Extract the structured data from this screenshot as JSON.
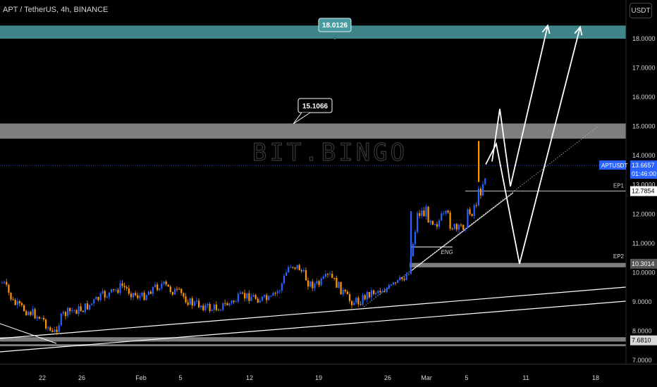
{
  "header": {
    "symbol_line": "APT / TetherUS, 4h, BINANCE"
  },
  "price_scale": {
    "unit": "USDT"
  },
  "watermark": "BIT.BINGO",
  "annotations": {
    "top_zone_label": "18.0126",
    "mid_zone_label": "15.1066",
    "ep1": "EP1",
    "ep2": "EP2",
    "eng": "ENG"
  },
  "price_tags": {
    "current_symbol": "APTUSDT",
    "current_price": "13.6657",
    "countdown": "01:46:00",
    "ep1_price": "12.7854",
    "ep2_price": "10.3014",
    "support_price": "7.6810"
  },
  "colors": {
    "background": "#000000",
    "top_zone": "#4a9ba0",
    "gray_zone": "#9e9e9e",
    "bull_candle": "#2962ff",
    "bear_candle": "#ff9800",
    "current_price_tag": "#2962ff",
    "text": "#d1d4dc"
  },
  "chart_data": {
    "type": "candlestick",
    "title": "APT / TetherUS, 4h, BINANCE",
    "y_ticks": [
      "7.0000",
      "8.0000",
      "9.0000",
      "10.0000",
      "11.0000",
      "12.0000",
      "13.0000",
      "14.0000",
      "15.0000",
      "16.0000",
      "17.0000",
      "18.0000"
    ],
    "ylim": [
      6.9,
      19.0
    ],
    "x_ticks": [
      "22",
      "26",
      "Feb",
      "5",
      "12",
      "19",
      "26",
      "Mar",
      "5",
      "11",
      "18"
    ],
    "zones": [
      {
        "from": 18.0,
        "to": 18.45
      },
      {
        "from": 14.58,
        "to": 15.1
      },
      {
        "from": 10.18,
        "to": 10.33
      },
      {
        "from": 7.48,
        "to": 7.55
      },
      {
        "from": 7.64,
        "to": 7.79
      }
    ],
    "levels": {
      "ep1": 12.7854,
      "ep2": 10.3014,
      "current": 13.6657
    },
    "price_path": [
      {
        "date": "Jan 18",
        "price": 9.65
      },
      {
        "date": "Jan 19",
        "price": 8.95
      },
      {
        "date": "Jan 20",
        "price": 8.75
      },
      {
        "date": "Jan 21",
        "price": 8.6
      },
      {
        "date": "Jan 22",
        "price": 8.4
      },
      {
        "date": "Jan 23",
        "price": 7.85
      },
      {
        "date": "Jan 24",
        "price": 8.55
      },
      {
        "date": "Jan 25",
        "price": 8.7
      },
      {
        "date": "Jan 26",
        "price": 8.75
      },
      {
        "date": "Jan 27",
        "price": 8.95
      },
      {
        "date": "Jan 28",
        "price": 9.2
      },
      {
        "date": "Jan 29",
        "price": 9.3
      },
      {
        "date": "Jan 30",
        "price": 9.55
      },
      {
        "date": "Jan 31",
        "price": 9.3
      },
      {
        "date": "Feb 1",
        "price": 9.15
      },
      {
        "date": "Feb 2",
        "price": 9.45
      },
      {
        "date": "Feb 3",
        "price": 9.6
      },
      {
        "date": "Feb 4",
        "price": 9.4
      },
      {
        "date": "Feb 5",
        "price": 9.25
      },
      {
        "date": "Feb 6",
        "price": 8.95
      },
      {
        "date": "Feb 7",
        "price": 8.9
      },
      {
        "date": "Feb 8",
        "price": 8.75
      },
      {
        "date": "Feb 9",
        "price": 8.85
      },
      {
        "date": "Feb 10",
        "price": 8.95
      },
      {
        "date": "Feb 11",
        "price": 9.15
      },
      {
        "date": "Feb 12",
        "price": 9.2
      },
      {
        "date": "Feb 13",
        "price": 9.1
      },
      {
        "date": "Feb 14",
        "price": 9.05
      },
      {
        "date": "Feb 15",
        "price": 9.45
      },
      {
        "date": "Feb 16",
        "price": 10.3
      },
      {
        "date": "Feb 17",
        "price": 10.15
      },
      {
        "date": "Feb 18",
        "price": 9.6
      },
      {
        "date": "Feb 19",
        "price": 9.6
      },
      {
        "date": "Feb 20",
        "price": 9.9
      },
      {
        "date": "Feb 21",
        "price": 9.5
      },
      {
        "date": "Feb 22",
        "price": 9.05
      },
      {
        "date": "Feb 23",
        "price": 9.0
      },
      {
        "date": "Feb 24",
        "price": 9.3
      },
      {
        "date": "Feb 25",
        "price": 9.4
      },
      {
        "date": "Feb 26",
        "price": 9.45
      },
      {
        "date": "Feb 27",
        "price": 9.65
      },
      {
        "date": "Feb 28",
        "price": 10.0
      },
      {
        "date": "Feb 29",
        "price": 12.1
      },
      {
        "date": "Mar 1",
        "price": 12.0
      },
      {
        "date": "Mar 2",
        "price": 11.75
      },
      {
        "date": "Mar 3",
        "price": 11.85
      },
      {
        "date": "Mar 4",
        "price": 11.4
      },
      {
        "date": "Mar 5",
        "price": 11.9
      },
      {
        "date": "Mar 6",
        "price": 12.5
      },
      {
        "date": "Mar 7",
        "price": 13.6
      }
    ],
    "projections": [
      {
        "name": "path-1",
        "points": [
          {
            "date": "Mar 7",
            "price": 13.8
          },
          {
            "date": "Mar 8",
            "price": 15.6
          },
          {
            "date": "Mar 9",
            "price": 12.95
          },
          {
            "date": "Mar 12",
            "price": 18.45
          }
        ]
      },
      {
        "name": "path-2",
        "points": [
          {
            "date": "Mar 7",
            "price": 13.7
          },
          {
            "date": "Mar 7",
            "price": 14.4
          },
          {
            "date": "Mar 9",
            "price": 10.3
          },
          {
            "date": "Mar 15",
            "price": 18.4
          }
        ]
      }
    ]
  }
}
